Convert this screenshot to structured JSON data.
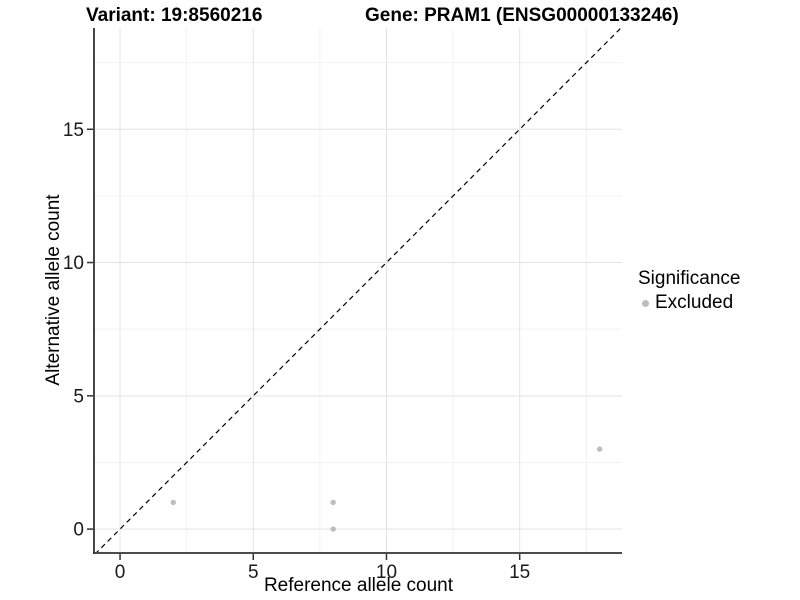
{
  "titles": {
    "variant": "Variant: 19:8560216",
    "gene": "Gene: PRAM1 (ENSG00000133246)"
  },
  "axes": {
    "x_label": "Reference allele count",
    "y_label": "Alternative allele count"
  },
  "legend": {
    "title": "Significance",
    "items": [
      {
        "label": "Excluded",
        "color": "#bebebe"
      }
    ]
  },
  "colors": {
    "point": "#bebebe",
    "grid_major": "#e3e3e3",
    "grid_minor": "#f2f2f2",
    "axis_line": "#333333",
    "tick_label": "#1a1a1a",
    "reference_line": "#000000"
  },
  "chart_data": {
    "type": "scatter",
    "title": "Variant: 19:8560216 | Gene: PRAM1 (ENSG00000133246)",
    "xlabel": "Reference allele count",
    "ylabel": "Alternative allele count",
    "series": [
      {
        "name": "Excluded",
        "color": "#bebebe",
        "points": [
          [
            2,
            1
          ],
          [
            8,
            0
          ],
          [
            8,
            1
          ],
          [
            18,
            3
          ]
        ]
      }
    ],
    "xlim": [
      -0.94,
      18.84
    ],
    "ylim": [
      -0.86,
      18.8
    ],
    "x_major_ticks": [
      0,
      5,
      10,
      15
    ],
    "y_major_ticks": [
      0,
      5,
      10,
      15
    ],
    "x_minor_ticks": [
      2.5,
      7.5,
      12.5,
      17.5
    ],
    "y_minor_ticks": [
      2.5,
      7.5,
      12.5,
      17.5
    ],
    "x_tick_labels": [
      "0",
      "5",
      "10",
      "15"
    ],
    "y_tick_labels": [
      "0",
      "5",
      "10",
      "15"
    ],
    "reference_line": {
      "slope": 1,
      "intercept": 0,
      "style": "dashed",
      "color": "#000000"
    },
    "grid": "major+minor",
    "legend_position": "right",
    "legend_title": "Significance"
  }
}
